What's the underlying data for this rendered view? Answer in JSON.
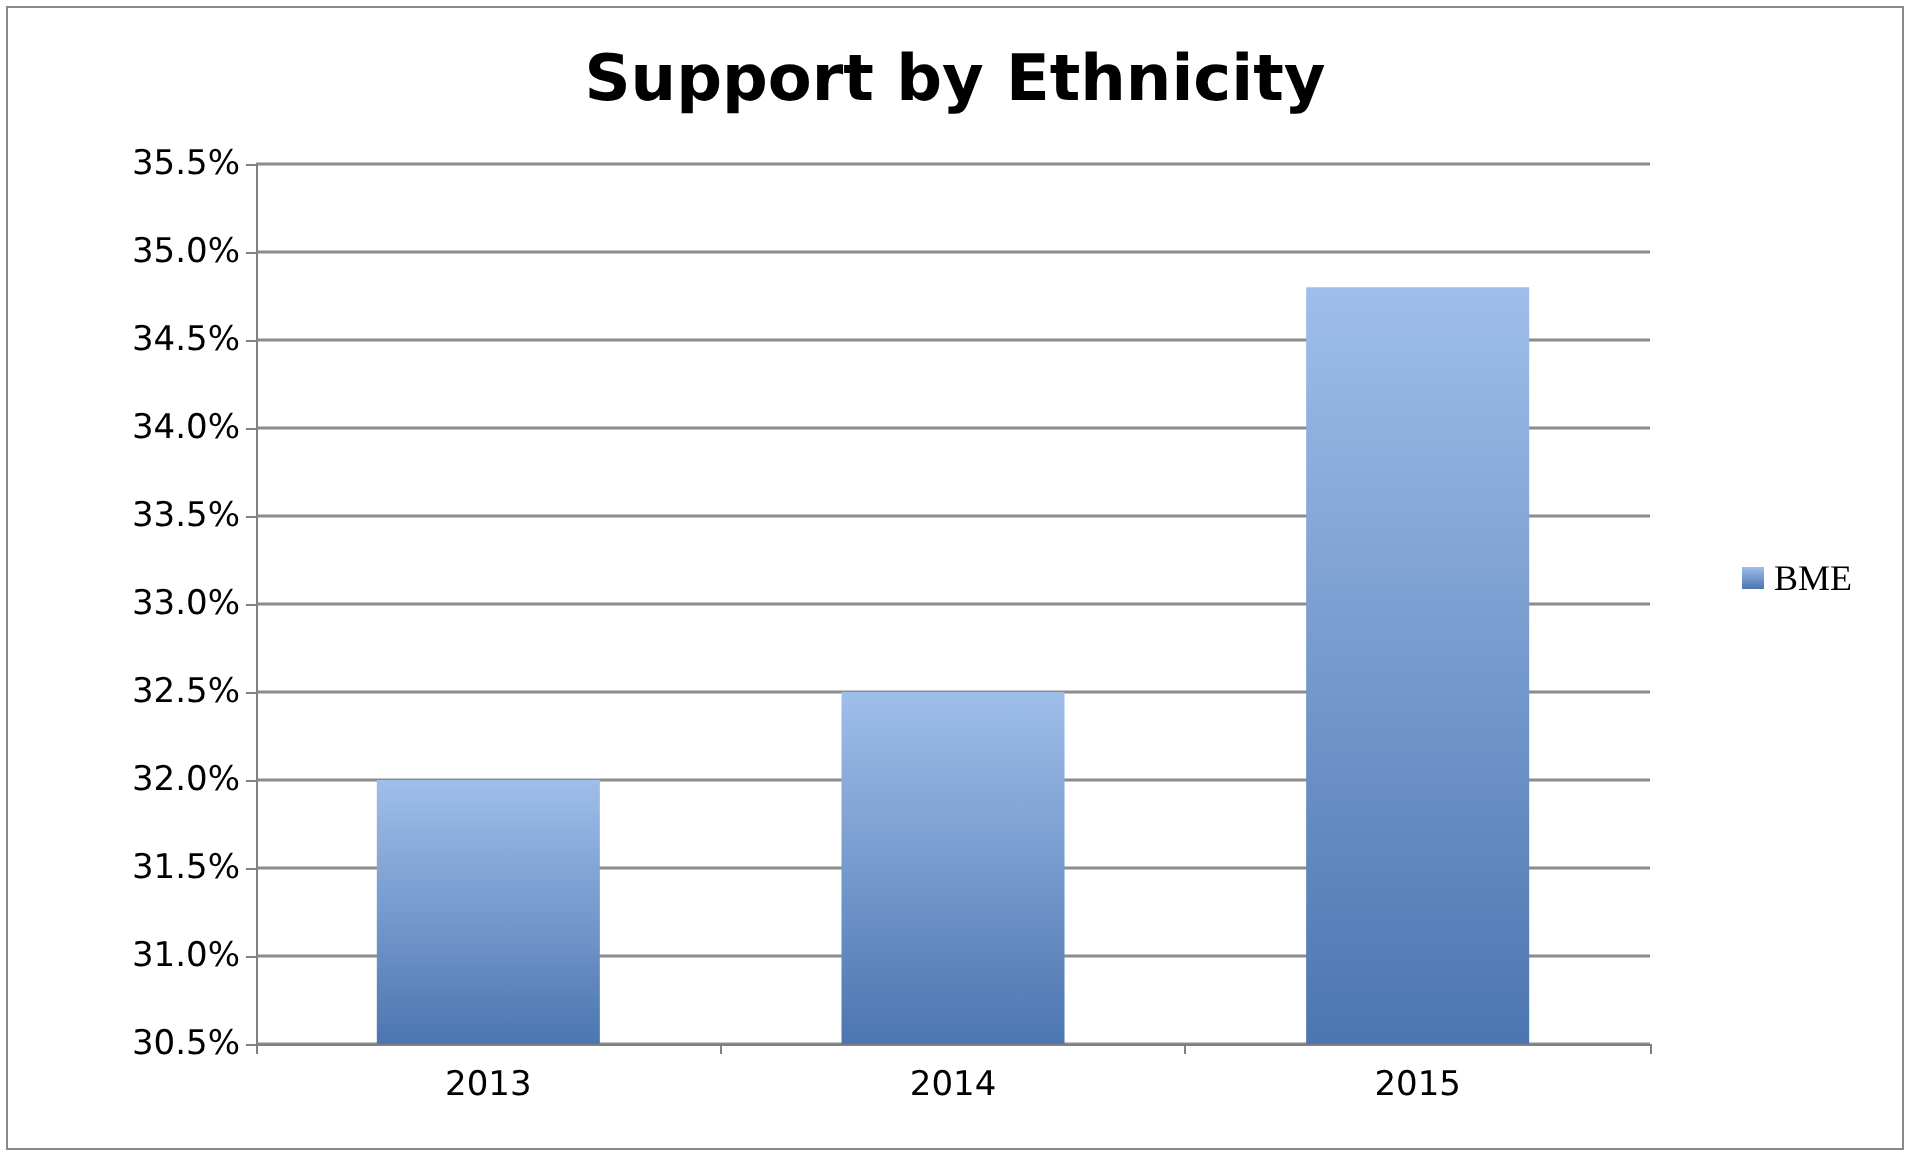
{
  "chart_data": {
    "type": "bar",
    "title": "Support by Ethnicity",
    "categories": [
      "2013",
      "2014",
      "2015"
    ],
    "series": [
      {
        "name": "BME",
        "color": "#5f93dc",
        "values": [
          32.0,
          32.5,
          34.8
        ]
      }
    ],
    "ylim": [
      30.5,
      35.5
    ],
    "yticks": [
      {
        "value": 30.5,
        "label": "30.5%"
      },
      {
        "value": 31.0,
        "label": "31.0%"
      },
      {
        "value": 31.5,
        "label": "31.5%"
      },
      {
        "value": 32.0,
        "label": "32.0%"
      },
      {
        "value": 32.5,
        "label": "32.5%"
      },
      {
        "value": 33.0,
        "label": "33.0%"
      },
      {
        "value": 33.5,
        "label": "33.5%"
      },
      {
        "value": 34.0,
        "label": "34.0%"
      },
      {
        "value": 34.5,
        "label": "34.5%"
      },
      {
        "value": 35.0,
        "label": "35.0%"
      },
      {
        "value": 35.5,
        "label": "35.5%"
      }
    ],
    "grid": "y",
    "legend": "right"
  }
}
